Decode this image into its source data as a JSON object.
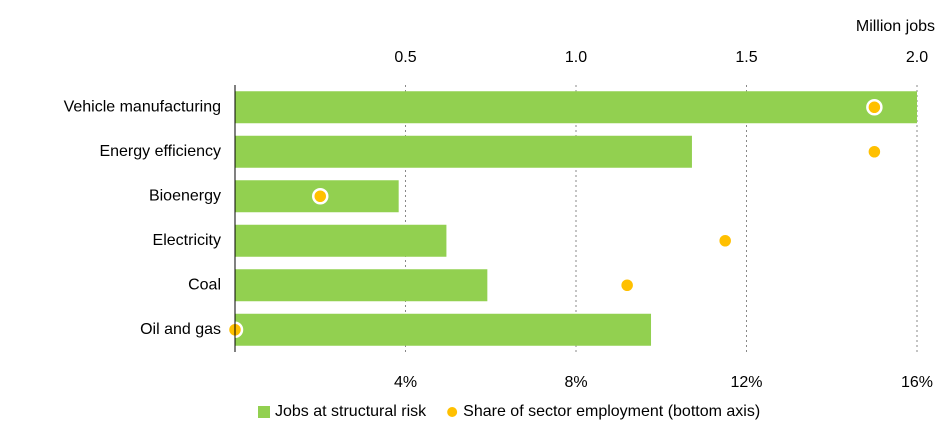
{
  "chart_data": {
    "type": "bar",
    "orientation": "horizontal",
    "xlabel": "Million jobs",
    "categories": [
      "Vehicle manufacturing",
      "Energy efficiency",
      "Bioenergy",
      "Electricity",
      "Coal",
      "Oil and gas"
    ],
    "series": [
      {
        "name": "Jobs at structural risk",
        "color": "#92d050",
        "values": [
          2.0,
          1.34,
          0.48,
          0.62,
          0.74,
          1.22
        ]
      },
      {
        "name": "Share of sector employment (bottom axis)",
        "color": "#ffc000",
        "axis": "x2",
        "values": [
          15.0,
          15.0,
          2.0,
          11.5,
          9.2,
          0
        ]
      }
    ],
    "xlim": [
      0,
      2.0
    ],
    "xticks": [
      0.5,
      {
        "value": 1.0,
        "label": "1.0"
      },
      1.5,
      {
        "value": 2.0,
        "label": "2.0"
      }
    ],
    "x2lim": [
      0,
      16
    ],
    "x2ticks": [
      {
        "value": 4,
        "label": "4%"
      },
      {
        "value": 8,
        "label": "8%"
      },
      {
        "value": 12,
        "label": "12%"
      },
      {
        "value": 16,
        "label": "16%"
      }
    ],
    "grid": true,
    "legend": "bottom"
  }
}
